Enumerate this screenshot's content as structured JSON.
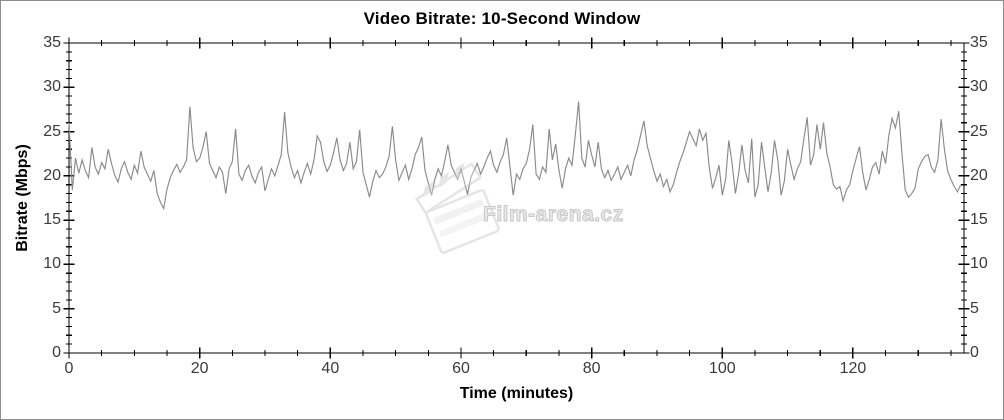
{
  "title": "Video Bitrate: 10-Second Window",
  "watermark": {
    "text": "Film-arena.cz",
    "icon": "clapperboard-icon"
  },
  "colors": {
    "line": "#8a8a8a",
    "axis": "#000000",
    "tick_text": "#3a3a3a",
    "watermark_gray": "#c4c4c4",
    "background": "#ffffff"
  },
  "chart_data": {
    "type": "line",
    "title": "Video Bitrate: 10-Second Window",
    "xlabel": "Time (minutes)",
    "ylabel": "Bitrate (Mbps)",
    "xlim": [
      0,
      137
    ],
    "ylim": [
      0,
      35
    ],
    "grid": false,
    "legend": "none",
    "x_major_ticks": [
      0,
      20,
      40,
      60,
      80,
      100,
      120
    ],
    "x_tick_labels": [
      "0",
      "20",
      "40",
      "60",
      "80",
      "100",
      "120"
    ],
    "x_minor_step": 5,
    "y_major_ticks": [
      0,
      5,
      10,
      15,
      20,
      25,
      30,
      35
    ],
    "y_tick_labels": [
      "0",
      "5",
      "10",
      "15",
      "20",
      "25",
      "30",
      "35"
    ],
    "y_minor_step": 1,
    "mirrored_axes": true,
    "series": [
      {
        "name": "bitrate_mbps",
        "x_start": 0,
        "x_step": 0.5,
        "values": [
          26.0,
          18.4,
          22.0,
          20.3,
          21.8,
          20.6,
          19.8,
          23.2,
          21.0,
          20.2,
          21.5,
          20.8,
          23.0,
          21.4,
          20.1,
          19.3,
          20.8,
          21.6,
          20.4,
          19.6,
          21.2,
          20.3,
          22.8,
          21.0,
          20.2,
          19.4,
          20.6,
          18.0,
          17.0,
          16.3,
          18.5,
          19.8,
          20.6,
          21.3,
          20.4,
          21.0,
          21.8,
          27.8,
          23.2,
          21.6,
          22.0,
          23.2,
          25.0,
          21.4,
          20.6,
          19.8,
          21.0,
          20.4,
          18.0,
          20.8,
          21.6,
          25.3,
          20.2,
          19.5,
          20.6,
          21.2,
          20.0,
          19.2,
          20.4,
          21.0,
          18.3,
          19.6,
          20.8,
          20.0,
          21.2,
          22.4,
          27.2,
          22.6,
          21.0,
          19.8,
          20.6,
          19.2,
          20.4,
          21.4,
          20.2,
          21.8,
          24.5,
          23.8,
          21.6,
          20.5,
          21.2,
          22.6,
          24.3,
          21.8,
          20.6,
          21.4,
          23.8,
          20.8,
          21.6,
          25.2,
          20.4,
          19.0,
          17.6,
          19.4,
          20.6,
          19.8,
          20.2,
          21.0,
          22.2,
          25.6,
          21.8,
          19.5,
          20.4,
          21.2,
          19.6,
          20.8,
          22.4,
          23.2,
          24.4,
          20.6,
          19.2,
          17.8,
          19.6,
          20.8,
          20.0,
          21.6,
          23.5,
          21.2,
          20.4,
          19.6,
          20.8,
          19.4,
          17.9,
          19.8,
          20.6,
          21.4,
          20.2,
          21.0,
          22.0,
          22.8,
          21.2,
          20.4,
          21.6,
          22.4,
          24.3,
          21.0,
          17.8,
          20.2,
          19.6,
          20.8,
          21.4,
          23.0,
          25.8,
          20.2,
          19.6,
          21.0,
          20.4,
          25.3,
          21.8,
          23.6,
          20.6,
          18.6,
          20.8,
          22.0,
          21.2,
          24.6,
          28.4,
          22.0,
          21.0,
          24.0,
          22.4,
          21.0,
          23.8,
          20.8,
          19.8,
          20.6,
          19.5,
          20.2,
          21.0,
          19.6,
          20.4,
          21.2,
          20.0,
          21.8,
          23.0,
          24.6,
          26.2,
          23.4,
          22.0,
          20.6,
          19.4,
          20.2,
          18.8,
          19.6,
          18.2,
          19.0,
          20.4,
          21.6,
          22.6,
          23.8,
          25.0,
          24.2,
          23.4,
          25.3,
          24.0,
          24.8,
          21.0,
          18.6,
          19.8,
          21.2,
          17.8,
          19.6,
          24.0,
          21.4,
          18.0,
          20.2,
          23.5,
          20.6,
          19.2,
          24.2,
          17.6,
          19.0,
          23.8,
          21.0,
          18.2,
          20.4,
          24.0,
          21.8,
          17.8,
          19.4,
          23.0,
          21.2,
          19.6,
          20.8,
          21.6,
          24.2,
          26.6,
          21.2,
          22.4,
          25.8,
          23.0,
          26.0,
          22.6,
          21.0,
          19.0,
          18.5,
          18.8,
          17.2,
          18.4,
          19.0,
          20.6,
          22.0,
          23.3,
          20.4,
          18.4,
          19.6,
          21.0,
          21.5,
          20.2,
          22.8,
          21.4,
          24.6,
          26.5,
          25.4,
          27.3,
          22.6,
          18.4,
          17.6,
          18.0,
          18.6,
          20.8,
          21.6,
          22.2,
          22.4,
          21.0,
          20.4,
          21.8,
          26.4,
          23.0,
          20.5,
          19.6,
          18.8,
          18.2,
          19.0
        ]
      }
    ]
  }
}
